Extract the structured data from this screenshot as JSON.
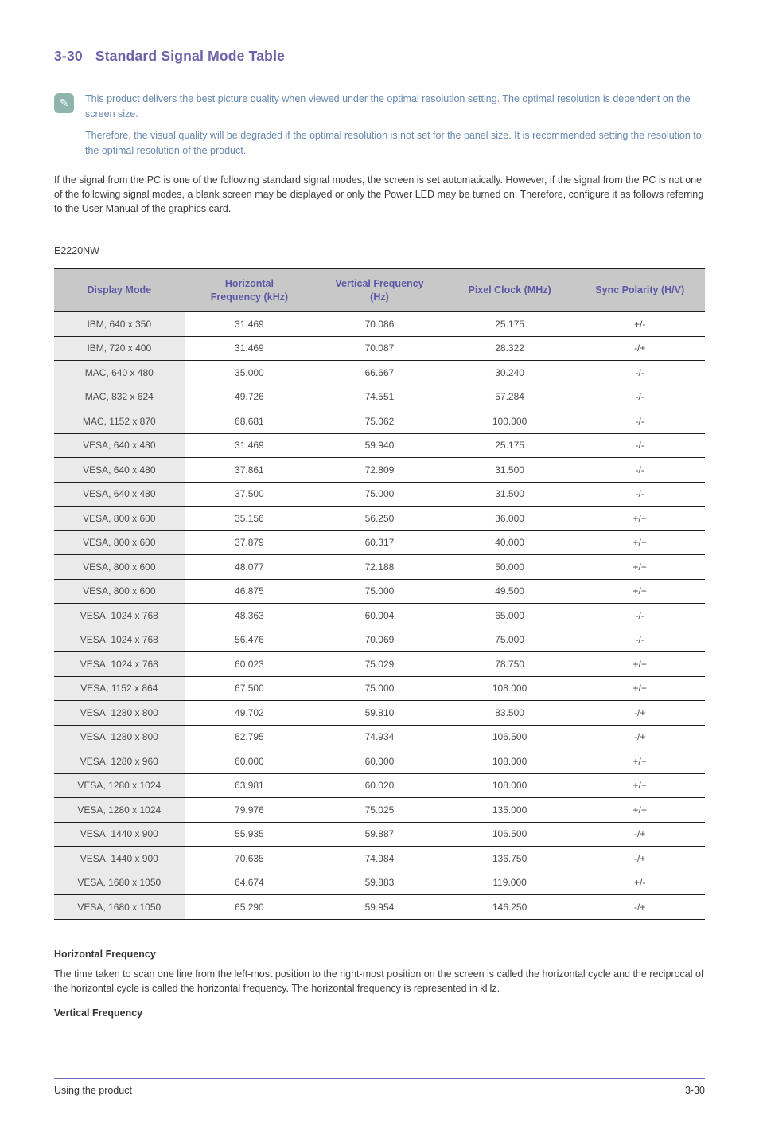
{
  "page": {
    "section_number": "3-30",
    "title": "Standard Signal Mode Table",
    "model": "E2220NW",
    "note": {
      "icon": "note-pencil-icon",
      "paragraph1": "This product delivers the best picture quality when viewed under the optimal resolution setting. The optimal resolution is dependent on the screen size.",
      "paragraph2": "Therefore, the visual quality will be degraded if the optimal resolution is not set for the panel size. It is recommended setting the resolution to the optimal resolution of the product."
    },
    "intro": "If the signal from the PC is one of the following standard signal modes, the screen is set automatically. However, if the signal from the PC is not one of the following signal modes, a blank screen may be displayed or only the Power LED may be turned on. Therefore, configure it as follows referring to the User Manual of the graphics card.",
    "definitions": [
      {
        "term": "Horizontal Frequency",
        "description": "The time taken to scan one line from the left-most position to the right-most position on the screen is called the horizontal cycle and the reciprocal of the horizontal cycle is called the horizontal frequency. The horizontal frequency is represented in kHz."
      },
      {
        "term": "Vertical Frequency",
        "description": ""
      }
    ],
    "footer": {
      "left": "Using the product",
      "right": "3-30"
    }
  },
  "chart_data": {
    "type": "table",
    "columns": [
      "Display Mode",
      "Horizontal Frequency (kHz)",
      "Vertical Frequency (Hz)",
      "Pixel Clock (MHz)",
      "Sync Polarity (H/V)"
    ],
    "rows": [
      [
        "IBM, 640 x 350",
        "31.469",
        "70.086",
        "25.175",
        "+/-"
      ],
      [
        "IBM, 720 x 400",
        "31.469",
        "70.087",
        "28.322",
        "-/+"
      ],
      [
        "MAC, 640 x 480",
        "35.000",
        "66.667",
        "30.240",
        "-/-"
      ],
      [
        "MAC, 832 x 624",
        "49.726",
        "74.551",
        "57.284",
        "-/-"
      ],
      [
        "MAC, 1152 x 870",
        "68.681",
        "75.062",
        "100.000",
        "-/-"
      ],
      [
        "VESA, 640 x 480",
        "31.469",
        "59.940",
        "25.175",
        "-/-"
      ],
      [
        "VESA, 640 x 480",
        "37.861",
        "72.809",
        "31.500",
        "-/-"
      ],
      [
        "VESA, 640 x 480",
        "37.500",
        "75.000",
        "31.500",
        "-/-"
      ],
      [
        "VESA, 800 x 600",
        "35.156",
        "56.250",
        "36.000",
        "+/+"
      ],
      [
        "VESA, 800 x 600",
        "37.879",
        "60.317",
        "40.000",
        "+/+"
      ],
      [
        "VESA, 800 x 600",
        "48.077",
        "72.188",
        "50.000",
        "+/+"
      ],
      [
        "VESA, 800 x 600",
        "46.875",
        "75.000",
        "49.500",
        "+/+"
      ],
      [
        "VESA, 1024 x 768",
        "48.363",
        "60.004",
        "65.000",
        "-/-"
      ],
      [
        "VESA, 1024 x 768",
        "56.476",
        "70.069",
        "75.000",
        "-/-"
      ],
      [
        "VESA, 1024 x 768",
        "60.023",
        "75.029",
        "78.750",
        "+/+"
      ],
      [
        "VESA, 1152 x 864",
        "67.500",
        "75.000",
        "108.000",
        "+/+"
      ],
      [
        "VESA, 1280 x 800",
        "49.702",
        "59.810",
        "83.500",
        "-/+"
      ],
      [
        "VESA, 1280 x 800",
        "62.795",
        "74.934",
        "106.500",
        "-/+"
      ],
      [
        "VESA, 1280 x 960",
        "60.000",
        "60.000",
        "108.000",
        "+/+"
      ],
      [
        "VESA, 1280 x 1024",
        "63.981",
        "60.020",
        "108.000",
        "+/+"
      ],
      [
        "VESA, 1280 x 1024",
        "79.976",
        "75.025",
        "135.000",
        "+/+"
      ],
      [
        "VESA, 1440 x 900",
        "55.935",
        "59.887",
        "106.500",
        "-/+"
      ],
      [
        "VESA, 1440 x 900",
        "70.635",
        "74.984",
        "136.750",
        "-/+"
      ],
      [
        "VESA, 1680 x 1050",
        "64.674",
        "59.883",
        "119.000",
        "+/-"
      ],
      [
        "VESA, 1680 x 1050",
        "65.290",
        "59.954",
        "146.250",
        "-/+"
      ]
    ]
  },
  "colors": {
    "accent_purple": "#6a63a8",
    "header_text_purple": "#5f59a5",
    "note_text_blue": "#6787ae",
    "note_icon_teal": "#8fb4ab",
    "table_header_bg": "#c8c8c8",
    "table_first_col_bg": "#eaeaea",
    "table_border": "#1e1e1e",
    "footer_rule": "#6e6bb2",
    "body_text": "#3c3c3c"
  },
  "icons": {
    "note_pencil": "✎"
  }
}
